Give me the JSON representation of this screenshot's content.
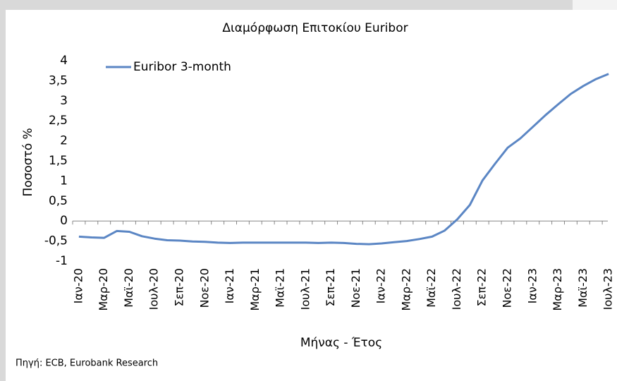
{
  "chart_data": {
    "type": "line",
    "title": "Διαμόρφωση Επιτοκίου Euribor",
    "y_label": "Ποσοστό %",
    "x_label": "Μήνας - Έτος",
    "source": "Πηγή: ECB, Eurobank Research",
    "categories": [
      "Ιαν-20",
      null,
      "Μαρ-20",
      null,
      "Μαϊ-20",
      null,
      "Ιουλ-20",
      null,
      "Σεπ-20",
      null,
      "Νοε-20",
      null,
      "Ιαν-21",
      null,
      "Μαρ-21",
      null,
      "Μαϊ-21",
      null,
      "Ιουλ-21",
      null,
      "Σεπ-21",
      null,
      "Νοε-21",
      null,
      "Ιαν-22",
      null,
      "Μαρ-22",
      null,
      "Μαϊ-22",
      null,
      "Ιουλ-22",
      null,
      "Σεπ-22",
      null,
      "Νοε-22",
      null,
      "Ιαν-23",
      null,
      "Μαρ-23",
      null,
      "Μαϊ-23",
      null,
      "Ιουλ-23"
    ],
    "series": [
      {
        "name": "Euribor 3-month",
        "color": "#5b86c4",
        "values": [
          -0.39,
          -0.41,
          -0.42,
          -0.25,
          -0.27,
          -0.38,
          -0.44,
          -0.48,
          -0.49,
          -0.51,
          -0.52,
          -0.54,
          -0.55,
          -0.54,
          -0.54,
          -0.54,
          -0.54,
          -0.54,
          -0.54,
          -0.55,
          -0.54,
          -0.55,
          -0.57,
          -0.58,
          -0.56,
          -0.53,
          -0.5,
          -0.45,
          -0.39,
          -0.24,
          0.04,
          0.4,
          1.01,
          1.43,
          1.83,
          2.06,
          2.35,
          2.64,
          2.91,
          3.17,
          3.37,
          3.54,
          3.67
        ]
      }
    ],
    "ylim": [
      -1,
      4
    ],
    "yticks": [
      -1,
      {
        "value": -0.5,
        "label": "-0,5"
      },
      0,
      {
        "value": 0.5,
        "label": "0,5"
      },
      1,
      {
        "value": 1.5,
        "label": "1,5"
      },
      2,
      {
        "value": 2.5,
        "label": "2,5"
      },
      3,
      {
        "value": 3.5,
        "label": "3,5"
      },
      4
    ],
    "legend": "top-left",
    "grid": false
  }
}
